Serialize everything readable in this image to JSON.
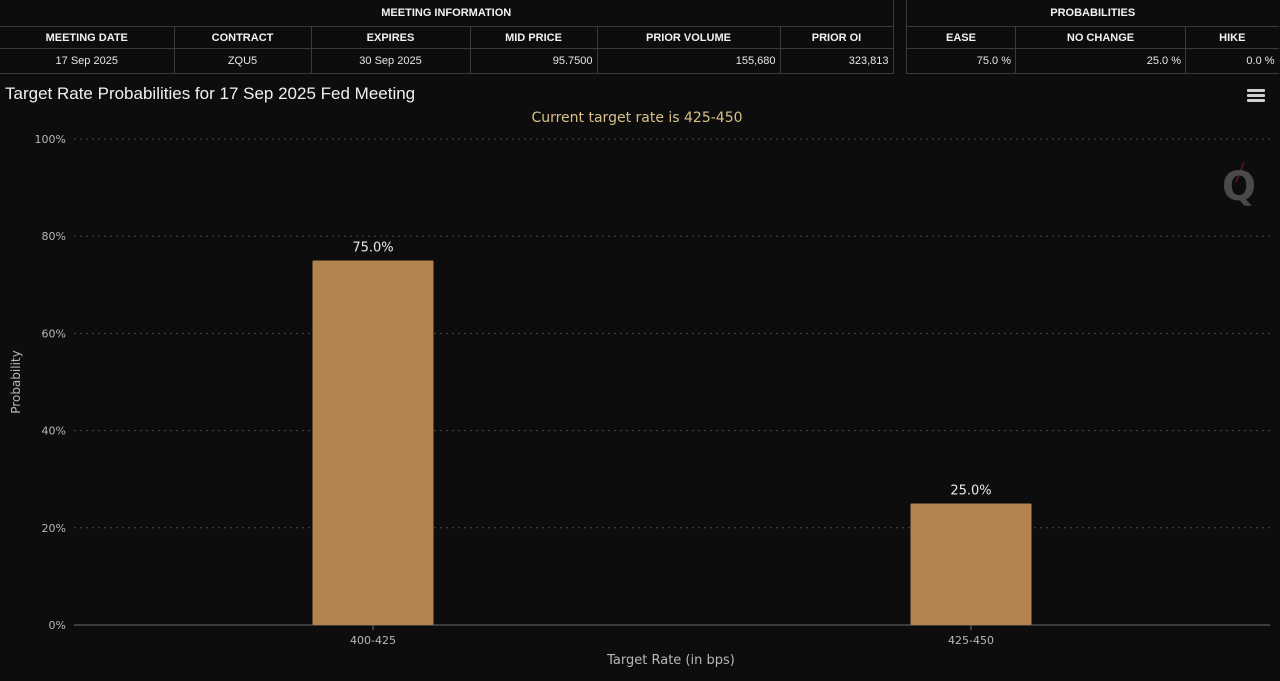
{
  "meeting_info": {
    "group_label": "MEETING INFORMATION",
    "columns": [
      "MEETING DATE",
      "CONTRACT",
      "EXPIRES",
      "MID PRICE",
      "PRIOR VOLUME",
      "PRIOR OI"
    ],
    "values": [
      "17 Sep 2025",
      "ZQU5",
      "30 Sep 2025",
      "95.7500",
      "155,680",
      "323,813"
    ]
  },
  "probabilities": {
    "group_label": "PROBABILITIES",
    "columns": [
      "EASE",
      "NO CHANGE",
      "HIKE"
    ],
    "values": [
      "75.0 %",
      "25.0 %",
      "0.0 %"
    ]
  },
  "menu_icon": "hamburger-menu-icon",
  "watermark_icon": "q-logo-icon",
  "colors": {
    "background": "#0d0d0d",
    "bar": "#b3834f",
    "subtitle": "#d8c08a",
    "grid": "#4a4a4a"
  },
  "chart_data": {
    "type": "bar",
    "title": "Target Rate Probabilities for 17 Sep 2025 Fed Meeting",
    "subtitle": "Current target rate is 425-450",
    "xlabel": "Target Rate (in bps)",
    "ylabel": "Probability",
    "categories": [
      "400-425",
      "425-450"
    ],
    "values": [
      75.0,
      25.0
    ],
    "data_labels": [
      "75.0%",
      "25.0%"
    ],
    "ylim": [
      0,
      100
    ],
    "yticks": [
      0,
      20,
      40,
      60,
      80,
      100
    ],
    "ytick_labels": [
      "0%",
      "20%",
      "40%",
      "60%",
      "80%",
      "100%"
    ],
    "grid": true,
    "grid_style": "dotted"
  }
}
